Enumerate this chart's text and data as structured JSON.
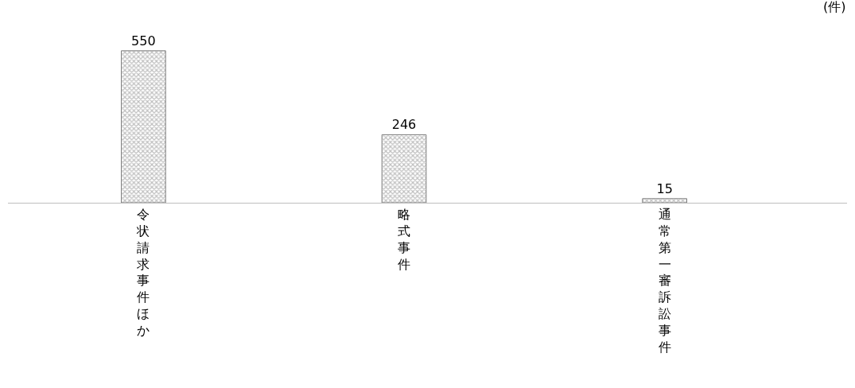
{
  "chart_data": {
    "type": "bar",
    "categories": [
      "令状請求事件ほか",
      "略式事件",
      "通常第一審訴訟事件"
    ],
    "values": [
      550,
      246,
      15
    ],
    "color": "#808080",
    "data_labels": true,
    "annotations": [
      "(件)"
    ],
    "legend": false
  }
}
